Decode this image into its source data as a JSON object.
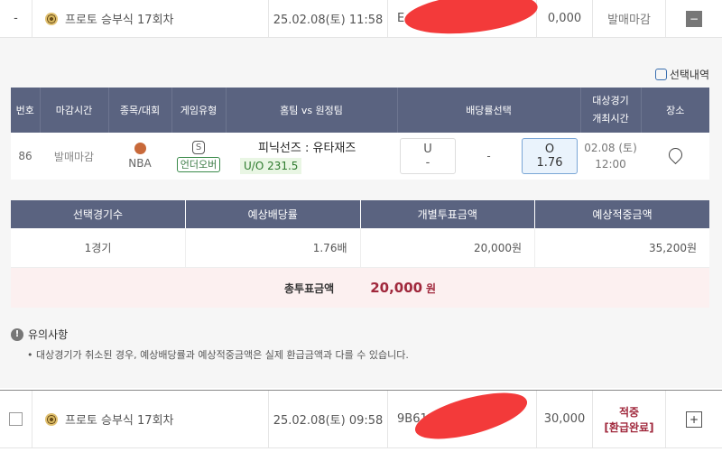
{
  "rows": [
    {
      "check": "-",
      "name": "프로토 승부식 17회차",
      "datetime": "25.02.08(토) 11:58",
      "code": "E",
      "amount": "0,000",
      "status": "발매마감",
      "toggle": "−"
    },
    {
      "name": "프로토 승부식 17회차",
      "datetime": "25.02.08(토) 09:58",
      "code": "9B61",
      "amount": "30,000",
      "status_line1": "적중",
      "status_line2": "[환급완료]",
      "toggle": "+"
    }
  ],
  "detail": {
    "selection_label": "선택내역",
    "headers": [
      "번호",
      "마감시간",
      "종목/대회",
      "게임유형",
      "홈팀 vs 원정팀",
      "배당률선택",
      "대상경기 개최시간",
      "장소"
    ],
    "game": {
      "no": "86",
      "deadline": "발매마감",
      "league": "NBA",
      "type_badge": "S",
      "type": "언더오버",
      "teams": "피닉선즈 : 유타재즈",
      "line": "U/O 231.5",
      "under_label": "U",
      "under_odds": "-",
      "middle": "-",
      "over_label": "O",
      "over_odds": "1.76",
      "date": "02.08 (토)",
      "time": "12:00",
      "selected": "over"
    },
    "summary_headers": [
      "선택경기수",
      "예상배당률",
      "개별투표금액",
      "예상적중금액"
    ],
    "summary_values": [
      "1경기",
      "1.76배",
      "20,000원",
      "35,200원"
    ],
    "total_label": "총투표금액",
    "total_value": "20,000",
    "total_unit": "원",
    "notice_title": "유의사항",
    "notice_text": "• 대상경기가 취소된 경우, 예상배당률과 예상적중금액은 실제 환급금액과 다를 수 있습니다."
  },
  "colors": {
    "header": "#5a6380",
    "hit": "#a0283c",
    "total_bg": "#fcf0f0"
  }
}
